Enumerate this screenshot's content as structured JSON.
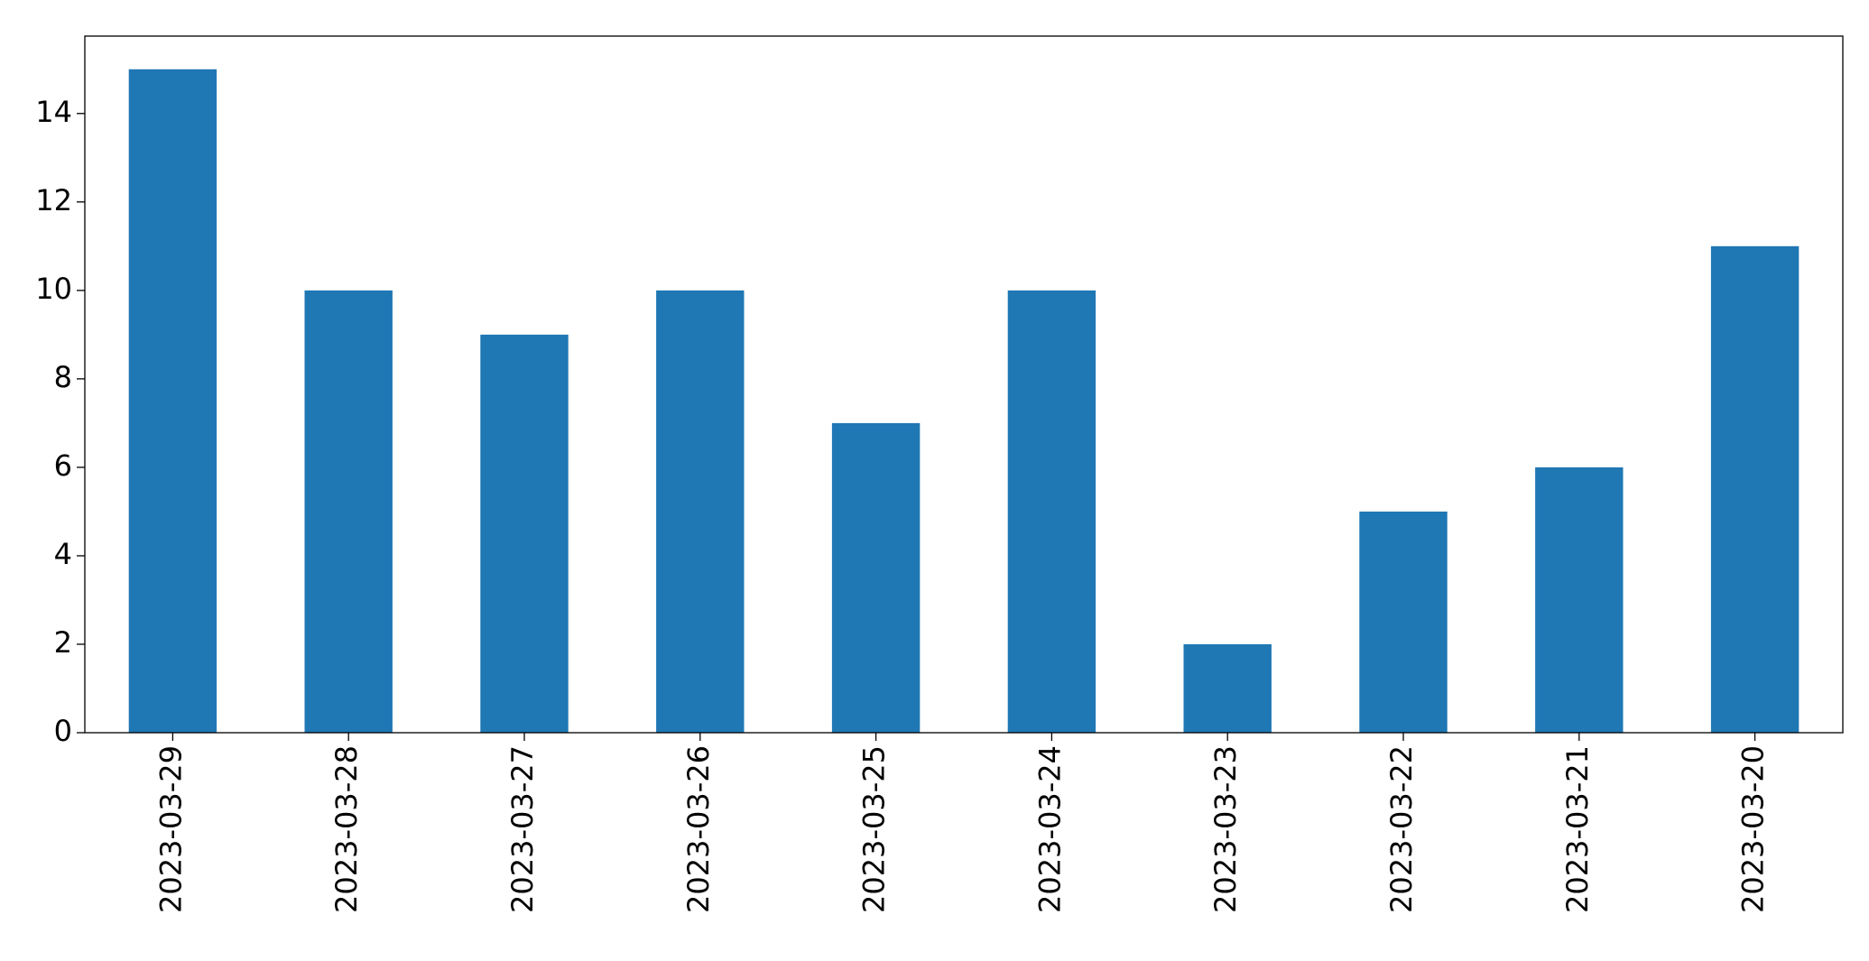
{
  "chart_data": {
    "type": "bar",
    "categories": [
      "2023-03-29",
      "2023-03-28",
      "2023-03-27",
      "2023-03-26",
      "2023-03-25",
      "2023-03-24",
      "2023-03-23",
      "2023-03-22",
      "2023-03-21",
      "2023-03-20"
    ],
    "values": [
      15,
      10,
      9,
      10,
      7,
      10,
      2,
      5,
      6,
      11
    ],
    "color": "#1f77b4",
    "ylim": [
      0,
      15.75
    ],
    "yticks": [
      0,
      2,
      4,
      6,
      8,
      10,
      12,
      14
    ],
    "grid": false
  }
}
